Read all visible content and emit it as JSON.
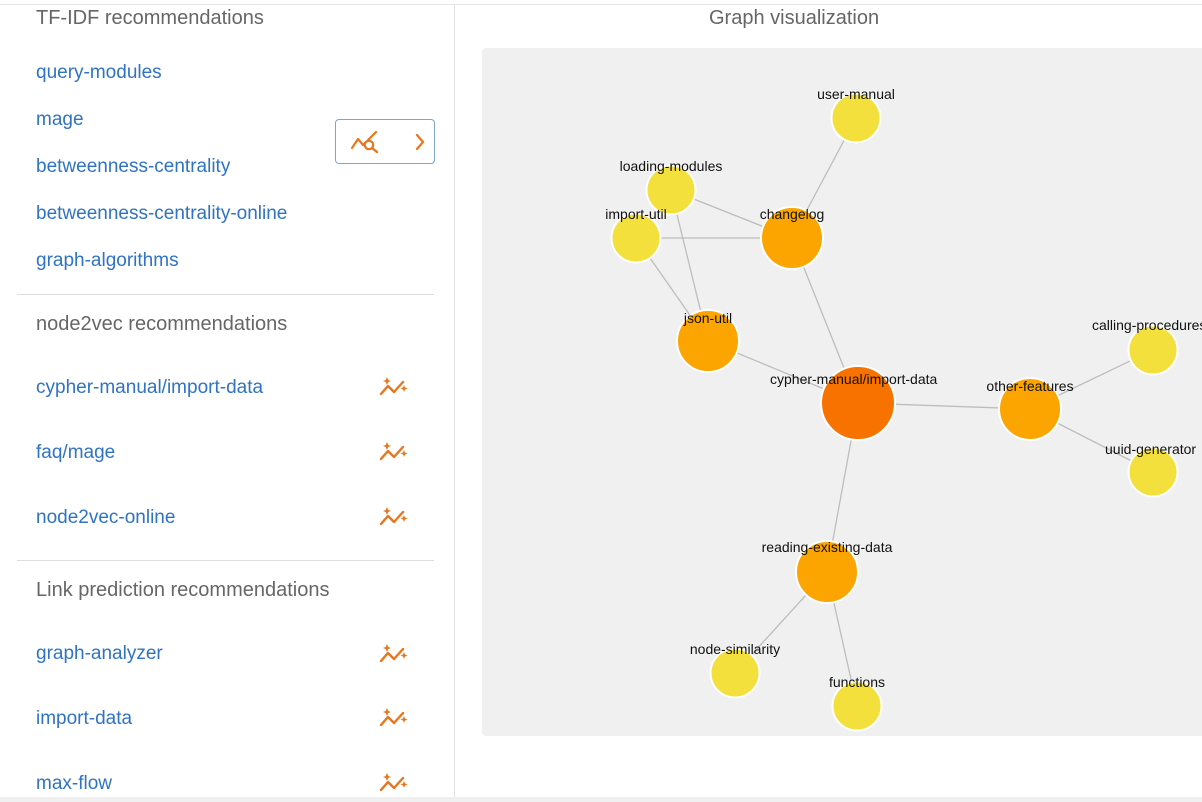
{
  "tfidf": {
    "title": "TF-IDF recommendations",
    "links": [
      "query-modules",
      "mage",
      "betweenness-centrality",
      "betweenness-centrality-online",
      "graph-algorithms"
    ]
  },
  "node2vec": {
    "title": "node2vec recommendations",
    "links": [
      "cypher-manual/import-data",
      "faq/mage",
      "node2vec-online"
    ]
  },
  "linkpred": {
    "title": "Link prediction recommendations",
    "links": [
      "graph-analyzer",
      "import-data",
      "max-flow"
    ]
  },
  "graph": {
    "title": "Graph visualization",
    "colors": {
      "center": "#f87200",
      "mid": "#fca400",
      "leaf": "#f3e03c",
      "edge": "#bdbdbd"
    },
    "nodes": [
      {
        "id": "cypher-manual/import-data",
        "level": "center"
      },
      {
        "id": "user-manual",
        "level": "leaf"
      },
      {
        "id": "changelog",
        "level": "mid"
      },
      {
        "id": "loading-modules",
        "level": "leaf"
      },
      {
        "id": "import-util",
        "level": "leaf"
      },
      {
        "id": "json-util",
        "level": "mid"
      },
      {
        "id": "other-features",
        "level": "mid"
      },
      {
        "id": "calling-procedures",
        "level": "leaf"
      },
      {
        "id": "uuid-generator",
        "level": "leaf"
      },
      {
        "id": "reading-existing-data",
        "level": "mid"
      },
      {
        "id": "node-similarity",
        "level": "leaf"
      },
      {
        "id": "functions",
        "level": "leaf"
      }
    ],
    "edges": [
      [
        "user-manual",
        "changelog"
      ],
      [
        "loading-modules",
        "changelog"
      ],
      [
        "import-util",
        "changelog"
      ],
      [
        "loading-modules",
        "json-util"
      ],
      [
        "import-util",
        "json-util"
      ],
      [
        "changelog",
        "cypher-manual/import-data"
      ],
      [
        "json-util",
        "cypher-manual/import-data"
      ],
      [
        "cypher-manual/import-data",
        "other-features"
      ],
      [
        "other-features",
        "calling-procedures"
      ],
      [
        "other-features",
        "uuid-generator"
      ],
      [
        "cypher-manual/import-data",
        "reading-existing-data"
      ],
      [
        "reading-existing-data",
        "node-similarity"
      ],
      [
        "reading-existing-data",
        "functions"
      ]
    ]
  },
  "icons": {
    "toggle": [
      "chart-search-icon",
      "chevron-right-icon"
    ],
    "recommend": "sparkle-trend-icon"
  }
}
